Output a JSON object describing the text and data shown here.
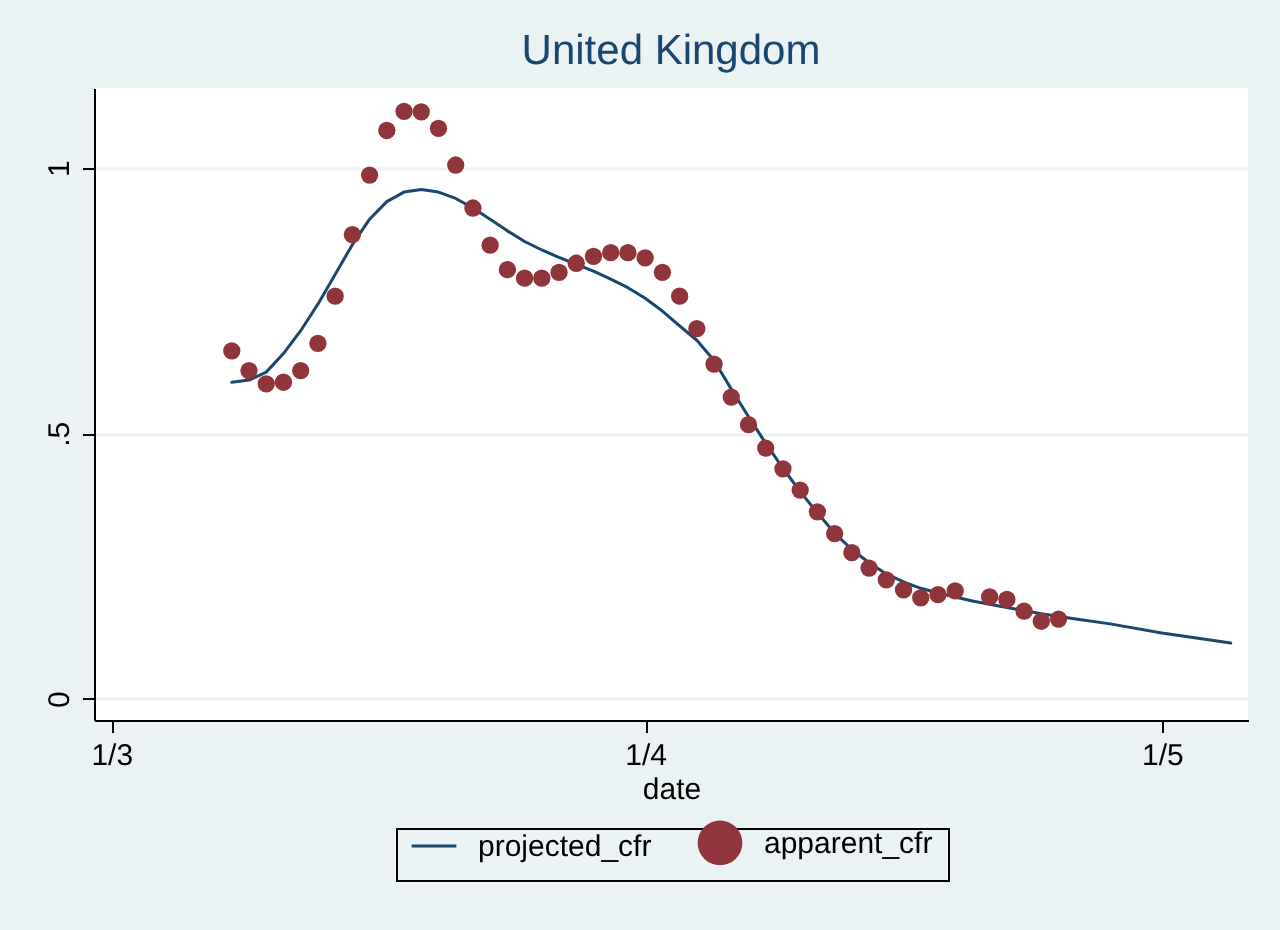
{
  "chart_data": {
    "type": "scatter",
    "title": "United Kingdom",
    "xlabel": "date",
    "xlim": [
      "--02-29",
      "--05-06"
    ],
    "xticks": [
      {
        "value": "--03-01",
        "label": "1/3"
      },
      {
        "value": "--04-01",
        "label": "1/4"
      },
      {
        "value": "--05-01",
        "label": "1/5"
      }
    ],
    "ylim": [
      -0.04,
      1.15
    ],
    "yticks": [
      0,
      {
        "value": 0.5,
        "label": ".5"
      },
      1
    ],
    "grid": "y",
    "legend": "bottom",
    "series": [
      {
        "name": "projected_cfr",
        "type": "line",
        "color": "#1a476f",
        "marker": "none",
        "x": [
          "--03-08",
          "--03-09",
          "--03-10",
          "--03-11",
          "--03-12",
          "--03-13",
          "--03-14",
          "--03-15",
          "--03-16",
          "--03-17",
          "--03-18",
          "--03-19",
          "--03-20",
          "--03-21",
          "--03-22",
          "--03-23",
          "--03-24",
          "--03-25",
          "--03-26",
          "--03-27",
          "--03-28",
          "--03-29",
          "--03-30",
          "--03-31",
          "--04-01",
          "--04-02",
          "--04-03",
          "--04-04",
          "--04-05",
          "--04-06",
          "--04-07",
          "--04-08",
          "--04-09",
          "--04-10",
          "--04-11",
          "--04-12",
          "--04-13",
          "--04-14",
          "--04-15",
          "--04-16",
          "--04-17",
          "--04-18",
          "--04-20",
          "--04-22",
          "--04-24",
          "--04-26",
          "--04-28",
          "--05-01",
          "--05-05"
        ],
        "values": [
          0.596,
          0.6,
          0.615,
          0.65,
          0.693,
          0.743,
          0.799,
          0.855,
          0.903,
          0.936,
          0.954,
          0.959,
          0.954,
          0.942,
          0.924,
          0.903,
          0.881,
          0.861,
          0.845,
          0.831,
          0.818,
          0.805,
          0.79,
          0.774,
          0.754,
          0.73,
          0.702,
          0.675,
          0.637,
          0.583,
          0.531,
          0.481,
          0.434,
          0.39,
          0.35,
          0.312,
          0.281,
          0.256,
          0.235,
          0.22,
          0.208,
          0.199,
          0.184,
          0.172,
          0.16,
          0.15,
          0.141,
          0.124,
          0.105
        ]
      },
      {
        "name": "apparent_cfr",
        "type": "scatter",
        "color": "#90353b",
        "marker": "circle",
        "x": [
          "--03-08",
          "--03-09",
          "--03-10",
          "--03-11",
          "--03-12",
          "--03-13",
          "--03-14",
          "--03-15",
          "--03-16",
          "--03-17",
          "--03-18",
          "--03-19",
          "--03-20",
          "--03-21",
          "--03-22",
          "--03-23",
          "--03-24",
          "--03-25",
          "--03-26",
          "--03-27",
          "--03-28",
          "--03-29",
          "--03-30",
          "--03-31",
          "--04-01",
          "--04-02",
          "--04-03",
          "--04-04",
          "--04-05",
          "--04-06",
          "--04-07",
          "--04-08",
          "--04-09",
          "--04-10",
          "--04-11",
          "--04-12",
          "--04-13",
          "--04-14",
          "--04-15",
          "--04-16",
          "--04-17",
          "--04-18",
          "--04-19",
          "--04-20",
          "--04-21",
          "--04-22",
          "--04-23",
          "--04-24",
          "--04-25"
        ],
        "values": [
          0.655,
          0.618,
          0.593,
          0.596,
          0.618,
          0.669,
          0.758,
          0.874,
          0.986,
          1.07,
          1.106,
          1.105,
          1.074,
          1.005,
          0.924,
          0.854,
          0.808,
          0.792,
          0.792,
          0.803,
          0.82,
          0.833,
          0.84,
          0.84,
          0.83,
          0.803,
          0.758,
          0.697,
          0.63,
          0.568,
          0.516,
          0.472,
          0.433,
          0.393,
          0.352,
          0.311,
          0.275,
          0.246,
          0.224,
          0.205,
          0.19,
          0.196,
          0.203,
          null,
          0.192,
          0.187,
          0.165,
          0.146,
          0.15
        ]
      }
    ]
  }
}
